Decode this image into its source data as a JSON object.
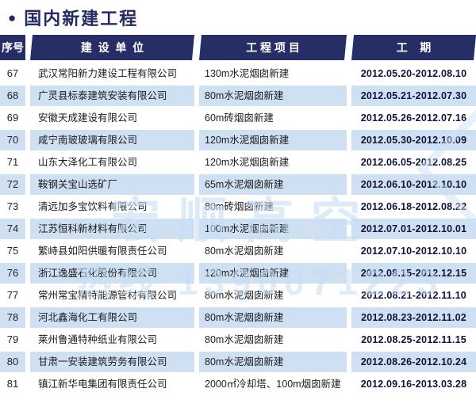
{
  "title": {
    "bullet": "●",
    "text": "国内新建工程"
  },
  "table": {
    "headers": {
      "no": "序号",
      "company": "建  设  单  位",
      "project": "工 程 项 目",
      "period": "工    期"
    },
    "rows": [
      {
        "no": "67",
        "company": "武汉常阳新力建设工程有限公司",
        "project": "130m水泥烟囱新建",
        "period": "2012.05.20-2012.08.10"
      },
      {
        "no": "68",
        "company": "广灵县标泰建筑安装有限公司",
        "project": "80m水泥烟囱新建",
        "period": "2012.05.21-2012.07.30"
      },
      {
        "no": "69",
        "company": "安徽天成建设有限公司",
        "project": "60m砖烟囱新建",
        "period": "2012.05.26-2012.07.16"
      },
      {
        "no": "70",
        "company": "咸宁南玻玻璃有限公司",
        "project": "120m水泥烟囱新建",
        "period": "2012.05.30-2012.10.09"
      },
      {
        "no": "71",
        "company": "山东大泽化工有限公司",
        "project": "120m水泥烟囱新建",
        "period": "2012.06.05-2012.08.25"
      },
      {
        "no": "72",
        "company": "鞍钢关宝山选矿厂",
        "project": "65m水泥烟囱新建",
        "period": "2012.06.10-2012.10.10"
      },
      {
        "no": "73",
        "company": "清远加多宝饮料有限公司",
        "project": "80m砖烟囱新建",
        "period": "2012.06.18-2012.08.22"
      },
      {
        "no": "74",
        "company": "江苏恒科新材料有限公司",
        "project": "100m水泥烟囱新建",
        "period": "2012.07.01-2012.10.01"
      },
      {
        "no": "75",
        "company": "繁峙县如阳供暖有限责任公司",
        "project": "80m水泥烟囱新建",
        "period": "2012.07.10-2012.10.10"
      },
      {
        "no": "76",
        "company": "浙江逸盛石化股份有限公司",
        "project": "120m水泥烟囱新建",
        "period": "2012.08.15-2012.12.15"
      },
      {
        "no": "77",
        "company": "常州常宝精特能源管材有限公司",
        "project": "80m水泥烟囱新建",
        "period": "2012.08.21-2012.11.10"
      },
      {
        "no": "78",
        "company": "河北鑫海化工有限公司",
        "project": "80m水泥烟囱新建",
        "period": "2012.08.23-2012.11.02"
      },
      {
        "no": "79",
        "company": "莱州鲁通特种纸业有限公司",
        "project": "80m水泥烟囱新建",
        "period": "2012.08.25-2012.11.15"
      },
      {
        "no": "80",
        "company": "甘肃一安装建筑劳务有限公司",
        "project": "80m水泥烟囱新建",
        "period": "2012.08.26-2012.10.24"
      },
      {
        "no": "81",
        "company": "镇江新华电集团有限责任公司",
        "project": "2000㎡冷却塔、100m烟囱新建",
        "period": "2012.09.16-2013.03.28"
      }
    ]
  },
  "watermark": {
    "line1": "宏顺高空",
    "line2": "热线 1390071223"
  },
  "colors": {
    "header_navy": "#272e66",
    "stripe_blue": "#cfe0f3",
    "title_navy": "#252b63",
    "watermark_blue": "#c6ddf3"
  }
}
